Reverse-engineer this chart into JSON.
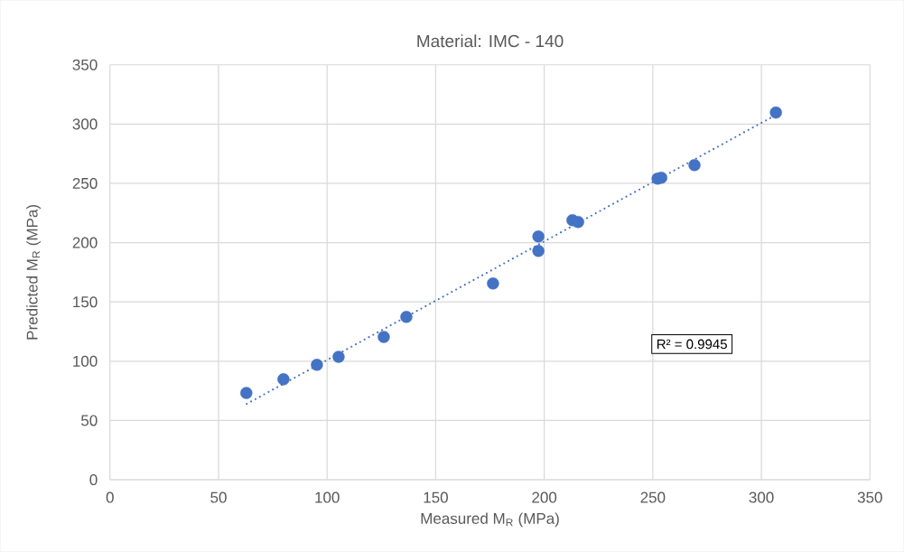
{
  "chart_data": {
    "type": "scatter",
    "title": "Material: IMC - 140",
    "xlabel": "Measured M$_{R}$ (MPa)",
    "ylabel": "Predicted M$_{R}$ (MPa)",
    "xlim": [
      0,
      350
    ],
    "ylim": [
      0,
      350
    ],
    "xticks": [
      0,
      50,
      100,
      150,
      200,
      250,
      300,
      350
    ],
    "yticks": [
      0,
      50,
      100,
      150,
      200,
      250,
      300,
      350
    ],
    "grid": true,
    "series": [
      {
        "type": "scatter",
        "marker": "circle",
        "color": "#4472c4",
        "x": [
          62.8,
          79.9,
          95.3,
          105.3,
          126.1,
          136.5,
          176.4,
          197.3,
          197.3,
          213.0,
          215.6,
          252.2,
          253.9,
          269.2,
          306.7
        ],
        "values": [
          73.2,
          84.7,
          96.9,
          103.7,
          120.5,
          137.3,
          165.5,
          205.2,
          193.0,
          218.9,
          217.4,
          254.0,
          254.8,
          265.4,
          309.7
        ]
      },
      {
        "type": "line",
        "color": "#4472c4",
        "line_style": "dotted",
        "marker": "none",
        "x": [
          63,
          307
        ],
        "values": [
          64,
          308
        ]
      }
    ],
    "annotations": [
      "R² = 0.9945"
    ]
  }
}
